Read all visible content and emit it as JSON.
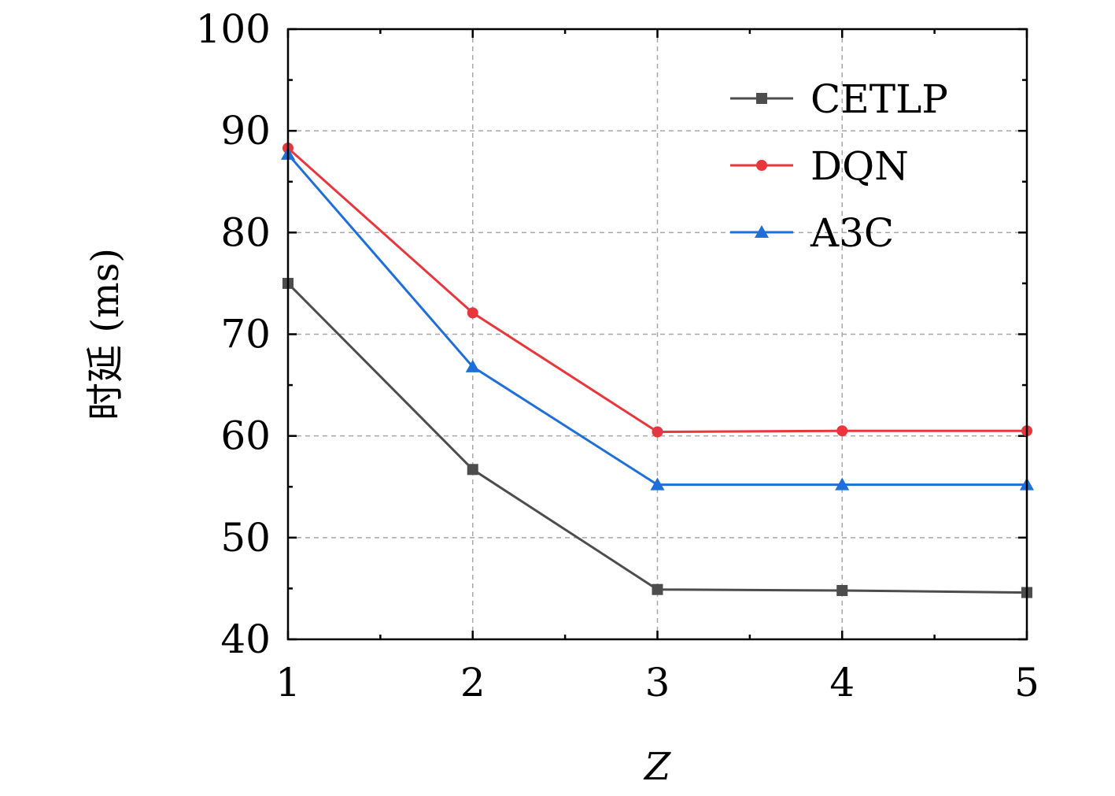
{
  "chart_data": {
    "type": "line",
    "xlabel": "Z",
    "ylabel": "时延 (ms)",
    "x": [
      1,
      2,
      3,
      4,
      5
    ],
    "xlim": [
      1,
      5
    ],
    "ylim": [
      40,
      100
    ],
    "xticks": [
      "1",
      "2",
      "3",
      "4",
      "5"
    ],
    "yticks": [
      "40",
      "50",
      "60",
      "70",
      "80",
      "90",
      "100"
    ],
    "grid": true,
    "legend_position": "top-right",
    "series": [
      {
        "name": "CETLP",
        "color": "#4d4d4d",
        "marker": "square",
        "values": [
          75.0,
          56.7,
          44.9,
          44.8,
          44.6
        ]
      },
      {
        "name": "DQN",
        "color": "#e8373c",
        "marker": "circle",
        "values": [
          88.3,
          72.1,
          60.4,
          60.5,
          60.5
        ]
      },
      {
        "name": "A3C",
        "color": "#1f6fd9",
        "marker": "triangle",
        "values": [
          87.7,
          66.8,
          55.2,
          55.2,
          55.2
        ]
      }
    ]
  }
}
